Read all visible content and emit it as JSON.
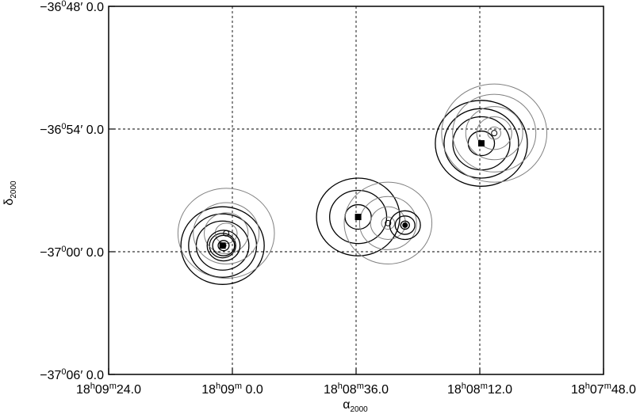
{
  "chart_data": {
    "type": "scatter",
    "title": "",
    "xlabel": "α2000",
    "ylabel": "δ2000",
    "xlabel_parts": {
      "sym": "α",
      "sub": "2000"
    },
    "ylabel_parts": {
      "sym": "δ",
      "sub": "2000"
    },
    "x_unit": "seconds of right ascension (18h00m00s = 0)",
    "y_unit": "arcminutes of declination",
    "xlim": [
      564,
      468
    ],
    "ylim": [
      -2226,
      -2208
    ],
    "grid": true,
    "x_ticks": [
      {
        "value": 564,
        "parts": [
          "18",
          "h",
          "09",
          "m",
          "24.0"
        ]
      },
      {
        "value": 540,
        "parts": [
          "18",
          "h",
          "09",
          "m",
          " 0.0"
        ]
      },
      {
        "value": 516,
        "parts": [
          "18",
          "h",
          "08",
          "m",
          "36.0"
        ]
      },
      {
        "value": 492,
        "parts": [
          "18",
          "h",
          "08",
          "m",
          "12.0"
        ]
      },
      {
        "value": 468,
        "parts": [
          "18",
          "h",
          "07",
          "m",
          "48.0"
        ]
      }
    ],
    "y_ticks": [
      {
        "value": -2208,
        "parts": [
          "−36",
          "0",
          "48′ 0.0"
        ]
      },
      {
        "value": -2214,
        "parts": [
          "−36",
          "0",
          "54′ 0.0"
        ]
      },
      {
        "value": -2220,
        "parts": [
          "−37",
          "0",
          "00′ 0.0"
        ]
      },
      {
        "value": -2226,
        "parts": [
          "−37",
          "0",
          "06′ 0.0"
        ]
      }
    ],
    "sources": [
      {
        "x": 541.9,
        "y": -2219.7,
        "marker": "filled-square",
        "color": "#000000",
        "rings_arcmin": [
          0.6,
          1.2,
          1.55,
          1.9
        ]
      },
      {
        "x": 541.2,
        "y": -2219.1,
        "marker": "circle",
        "color": "#808080",
        "rings_arcmin": [
          0.5,
          1.0,
          1.5,
          2.2
        ]
      },
      {
        "x": 541.7,
        "y": -2219.7,
        "marker": "filled-circle",
        "color": "#000000",
        "rings_arcmin": [
          0.25,
          0.5,
          0.75
        ]
      },
      {
        "x": 515.6,
        "y": -2218.3,
        "marker": "filled-square",
        "color": "#000000",
        "rings_arcmin": [
          0.6,
          1.3,
          1.9
        ]
      },
      {
        "x": 509.8,
        "y": -2218.6,
        "marker": "circle",
        "color": "#808080",
        "rings_arcmin": [
          0.3,
          0.8,
          1.3,
          2.0
        ]
      },
      {
        "x": 506.5,
        "y": -2218.7,
        "marker": "filled-circle",
        "color": "#000000",
        "rings_arcmin": [
          0.2,
          0.45,
          0.7
        ]
      },
      {
        "x": 491.7,
        "y": -2214.7,
        "marker": "filled-square",
        "color": "#000000",
        "rings_arcmin": [
          0.6,
          1.3,
          1.7,
          2.1
        ]
      },
      {
        "x": 489.2,
        "y": -2214.2,
        "marker": "circle",
        "color": "#808080",
        "rings_arcmin": [
          0.3,
          0.8,
          1.3,
          1.9,
          2.4
        ]
      }
    ]
  }
}
